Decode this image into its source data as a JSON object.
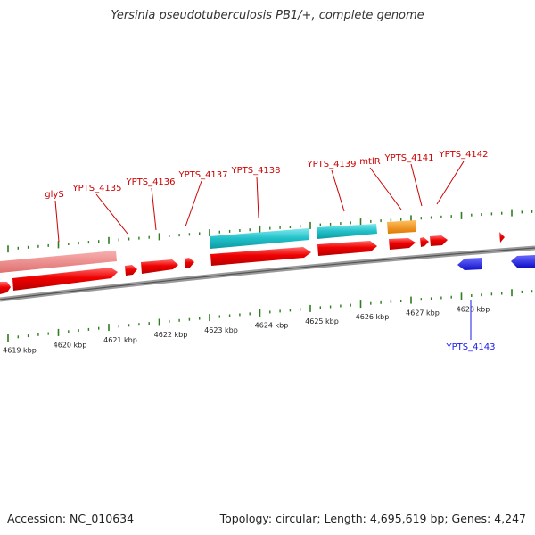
{
  "title": "Yersinia pseudotuberculosis PB1/+, complete genome",
  "footer": {
    "accession": "Accession: NC_010634",
    "topology": "Topology: circular; Length: 4,695,619 bp; Genes: 4,247"
  },
  "colors": {
    "forward_gene": "#ee0000",
    "reverse_gene": "#1a1aee",
    "pseudogene": "#f08080",
    "rrna_like": "#20c0c8",
    "special": "#ff8c00",
    "tick": "#2e7d1e",
    "backbone": "#808080"
  },
  "scale": {
    "unit": "kbp",
    "labels": [
      "4619 kbp",
      "4620 kbp",
      "4621 kbp",
      "4622 kbp",
      "4623 kbp",
      "4624 kbp",
      "4625 kbp",
      "4626 kbp",
      "4627 kbp",
      "4628 kbp"
    ]
  },
  "genes": [
    {
      "label": "glyS",
      "strand": "+"
    },
    {
      "label": "YPTS_4135",
      "strand": "+"
    },
    {
      "label": "YPTS_4136",
      "strand": "+"
    },
    {
      "label": "YPTS_4137",
      "strand": "+"
    },
    {
      "label": "YPTS_4138",
      "strand": "+"
    },
    {
      "label": "YPTS_4139",
      "strand": "+"
    },
    {
      "label": "mtlR",
      "strand": "+"
    },
    {
      "label": "YPTS_4141",
      "strand": "+"
    },
    {
      "label": "YPTS_4142",
      "strand": "+"
    },
    {
      "label": "YPTS_4143",
      "strand": "-"
    }
  ]
}
